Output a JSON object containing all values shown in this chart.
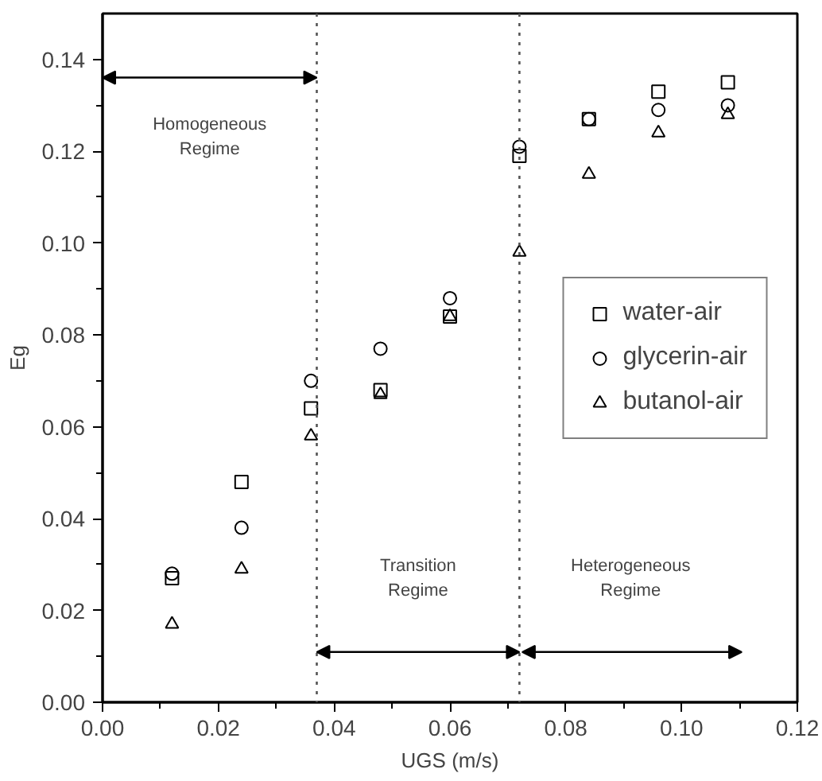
{
  "chart_data": {
    "type": "scatter",
    "xlabel": "UGS (m/s)",
    "ylabel": "Eg",
    "x": [
      0.012,
      0.024,
      0.036,
      0.048,
      0.06,
      0.072,
      0.084,
      0.096,
      0.108
    ],
    "series": [
      {
        "name": "water-air",
        "color": "#000000",
        "marker": "square",
        "values": [
          0.027,
          0.048,
          0.064,
          0.068,
          0.084,
          0.119,
          0.127,
          0.133,
          0.135
        ]
      },
      {
        "name": "glycerin-air",
        "color": "#000000",
        "marker": "circle",
        "values": [
          0.028,
          0.038,
          0.07,
          0.077,
          0.088,
          0.121,
          0.127,
          0.129,
          0.13
        ]
      },
      {
        "name": "butanol-air",
        "color": "#000000",
        "marker": "triangle",
        "values": [
          0.017,
          0.029,
          0.058,
          0.067,
          0.084,
          0.098,
          0.115,
          0.124,
          0.128
        ]
      }
    ],
    "xlim": [
      0,
      0.12
    ],
    "xticks": [
      {
        "value": 0,
        "label": "0.00"
      },
      {
        "value": 0.02,
        "label": "0.02"
      },
      {
        "value": 0.04,
        "label": "0.04"
      },
      {
        "value": 0.06,
        "label": "0.06"
      },
      {
        "value": 0.08,
        "label": "0.08"
      },
      {
        "value": 0.1,
        "label": "0.10"
      },
      {
        "value": 0.12,
        "label": "0.12"
      }
    ],
    "ylim": [
      0,
      0.15
    ],
    "yticks": [
      {
        "value": 0,
        "label": "0.00"
      },
      {
        "value": 0.02,
        "label": "0.02"
      },
      {
        "value": 0.04,
        "label": "0.04"
      },
      {
        "value": 0.06,
        "label": "0.06"
      },
      {
        "value": 0.08,
        "label": "0.08"
      },
      {
        "value": 0.1,
        "label": "0.10"
      },
      {
        "value": 0.12,
        "label": "0.12"
      },
      {
        "value": 0.14,
        "label": "0.14"
      }
    ],
    "ref_lines": [
      {
        "axis": "x",
        "value": 0.037,
        "line_style": "dotted",
        "color": "#555555"
      },
      {
        "axis": "x",
        "value": 0.072,
        "line_style": "dotted",
        "color": "#555555"
      }
    ],
    "annotations": [
      "Homogeneous\nRegime",
      "Transition\nRegime",
      "Heterogeneous\nRegime"
    ],
    "grid": false,
    "legend": "right"
  }
}
